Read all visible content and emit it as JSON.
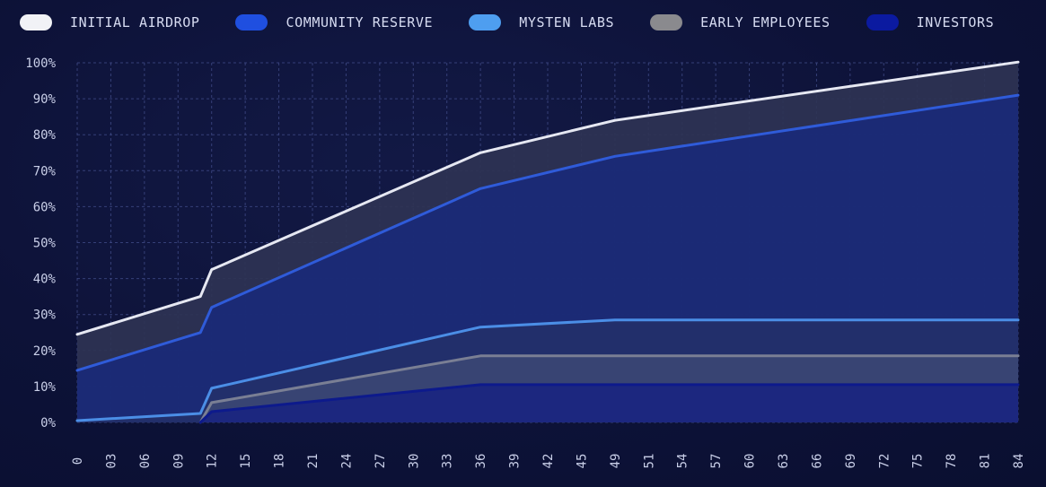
{
  "chart_data": {
    "type": "area",
    "title": "",
    "xlabel": "",
    "ylabel": "",
    "ylim": [
      0,
      100
    ],
    "xlim": [
      0,
      84
    ],
    "x_ticks": [
      "0",
      "03",
      "06",
      "09",
      "12",
      "15",
      "18",
      "21",
      "24",
      "27",
      "30",
      "33",
      "36",
      "39",
      "42",
      "45",
      "49",
      "51",
      "54",
      "57",
      "60",
      "63",
      "66",
      "69",
      "72",
      "75",
      "78",
      "81",
      "84"
    ],
    "y_ticks": [
      "0%",
      "10%",
      "20%",
      "30%",
      "40%",
      "50%",
      "60%",
      "70%",
      "80%",
      "90%",
      "100%"
    ],
    "grid": true,
    "legend_position": "top",
    "series": [
      {
        "name": "INITIAL AIRDROP",
        "color": "#e6e8f2",
        "fill": "#2e3354",
        "points": [
          [
            0,
            24.5
          ],
          [
            11,
            35
          ],
          [
            12,
            42.5
          ],
          [
            36,
            75
          ],
          [
            48,
            84
          ],
          [
            84,
            100.2
          ]
        ]
      },
      {
        "name": "COMMUNITY RESERVE",
        "color": "#2f5bd9",
        "fill": "#1a2a78",
        "points": [
          [
            0,
            14.5
          ],
          [
            11,
            25
          ],
          [
            12,
            32
          ],
          [
            36,
            65
          ],
          [
            48,
            74
          ],
          [
            84,
            91
          ]
        ]
      },
      {
        "name": "MYSTEN LABS",
        "color": "#4b8ee6",
        "fill": "#23306a",
        "points": [
          [
            0,
            0.5
          ],
          [
            11,
            2.5
          ],
          [
            12,
            9.5
          ],
          [
            36,
            26.5
          ],
          [
            48,
            28.5
          ],
          [
            84,
            28.5
          ]
        ]
      },
      {
        "name": "EARLY EMPLOYEES",
        "color": "#7a7f94",
        "fill": "#3b4674",
        "points": [
          [
            11,
            0
          ],
          [
            12,
            5.5
          ],
          [
            36,
            18.5
          ],
          [
            84,
            18.5
          ]
        ]
      },
      {
        "name": "INVESTORS",
        "color": "#0d1a8c",
        "fill": "#1a2580",
        "points": [
          [
            11,
            0
          ],
          [
            12,
            3
          ],
          [
            36,
            10.5
          ],
          [
            84,
            10.5
          ]
        ]
      }
    ],
    "legend": [
      {
        "label": "INITIAL AIRDROP",
        "color": "#f1f2f6"
      },
      {
        "label": "COMMUNITY RESERVE",
        "color": "#1f4fe0"
      },
      {
        "label": "MYSTEN LABS",
        "color": "#4e9ef0"
      },
      {
        "label": "EARLY EMPLOYEES",
        "color": "#8a8a8e"
      },
      {
        "label": "INVESTORS",
        "color": "#0b1aa0"
      }
    ]
  }
}
